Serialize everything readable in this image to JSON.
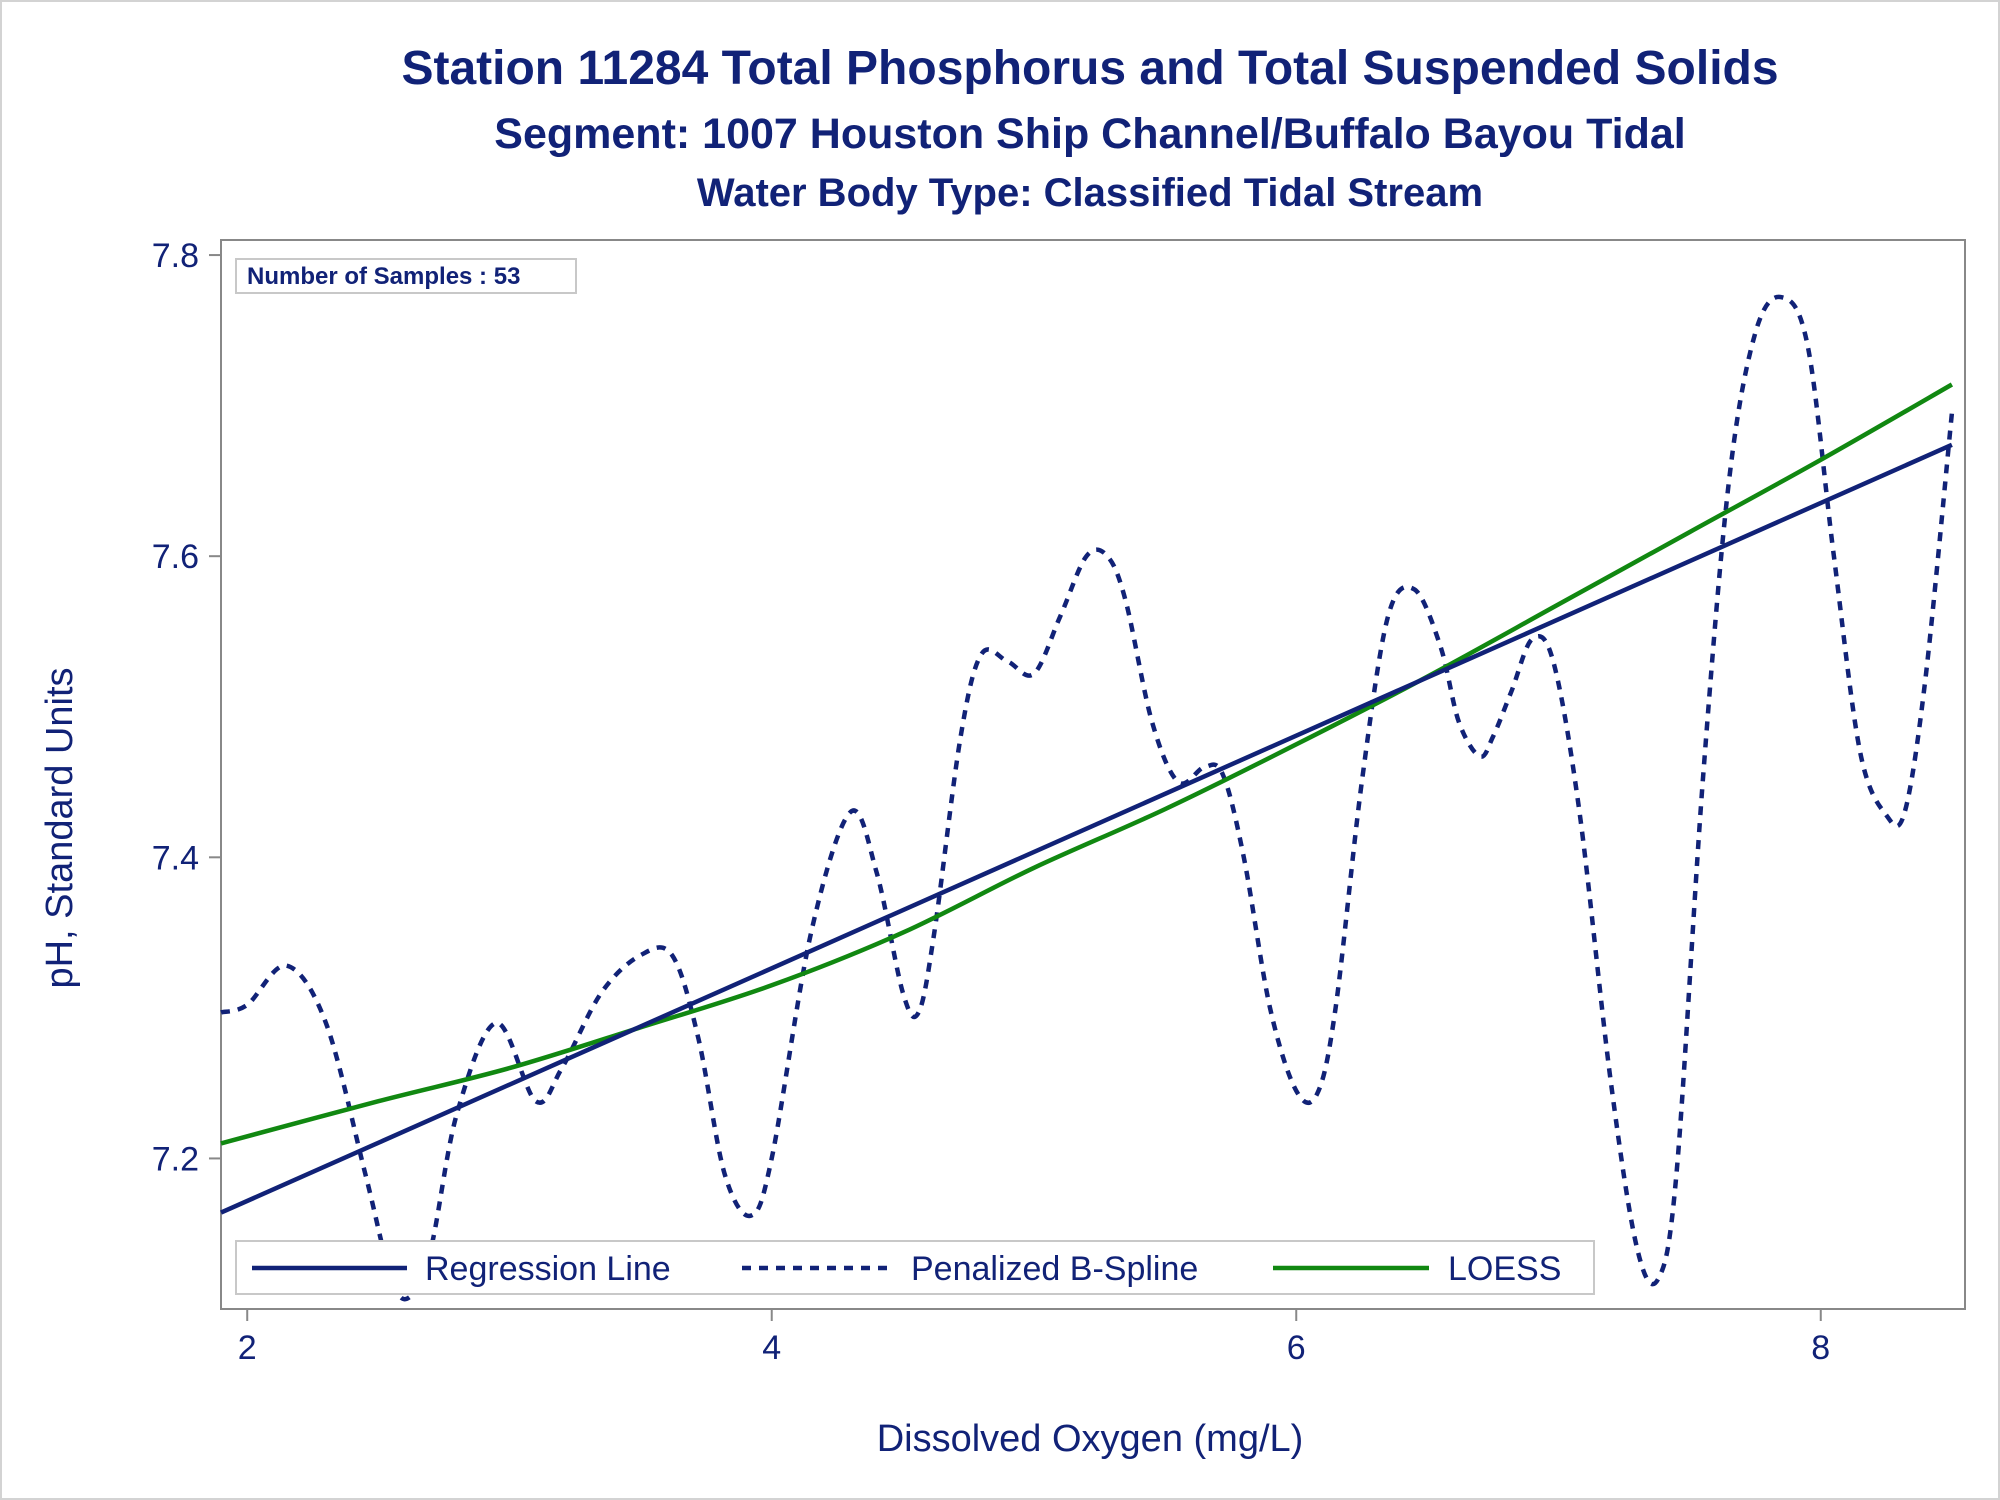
{
  "chart_data": {
    "type": "line",
    "title": "Station 11284  Total Phosphorus and Total Suspended Solids",
    "subtitle": "Segment: 1007  Houston Ship Channel/Buffalo Bayou Tidal",
    "subtitle2": "Water Body Type: Classified Tidal Stream",
    "xlabel": "Dissolved Oxygen (mg/L)",
    "ylabel": "pH, Standard Units",
    "xlim": [
      1.9,
      8.55
    ],
    "ylim": [
      7.1,
      7.81
    ],
    "x_ticks": [
      2,
      4,
      6,
      8
    ],
    "x_tick_labels": [
      "2",
      "4",
      "6",
      "8"
    ],
    "y_ticks": [
      7.2,
      7.4,
      7.6,
      7.8
    ],
    "y_tick_labels": [
      "7.2",
      "7.4",
      "7.6",
      "7.8"
    ],
    "grid": false,
    "legend_position": "bottom-inside",
    "inset_label": "Number of Samples : 53",
    "colors": {
      "navy": "#112277",
      "green": "#118811",
      "axis": "#888888",
      "frame": "#d3d3d3"
    },
    "series": [
      {
        "name": "Regression Line",
        "style": "solid",
        "color": "#112277",
        "x": [
          1.9,
          8.5
        ],
        "y": [
          7.164,
          7.674
        ]
      },
      {
        "name": "Penalized B-Spline",
        "style": "dashed",
        "color": "#112277",
        "x": [
          1.9,
          2.0,
          2.15,
          2.3,
          2.45,
          2.55,
          2.62,
          2.7,
          2.8,
          2.95,
          3.1,
          3.2,
          3.35,
          3.5,
          3.62,
          3.72,
          3.82,
          3.92,
          4.0,
          4.15,
          4.3,
          4.4,
          4.5,
          4.56,
          4.62,
          4.72,
          4.8,
          4.9,
          5.0,
          5.1,
          5.2,
          5.28,
          5.35,
          5.45,
          5.55,
          5.65,
          5.72,
          5.8,
          5.9,
          6.0,
          6.08,
          6.15,
          6.25,
          6.35,
          6.45,
          6.55,
          6.62,
          6.7,
          6.75,
          6.82,
          6.9,
          6.98,
          7.08,
          7.2,
          7.3,
          7.38,
          7.45,
          7.55,
          7.65,
          7.75,
          7.85,
          7.95,
          8.05,
          8.15,
          8.25,
          8.32,
          8.4,
          8.5
        ],
        "y": [
          7.297,
          7.302,
          7.328,
          7.29,
          7.19,
          7.12,
          7.108,
          7.14,
          7.23,
          7.29,
          7.238,
          7.26,
          7.31,
          7.335,
          7.335,
          7.28,
          7.19,
          7.162,
          7.2,
          7.35,
          7.43,
          7.39,
          7.31,
          7.297,
          7.35,
          7.48,
          7.535,
          7.53,
          7.522,
          7.56,
          7.6,
          7.6,
          7.57,
          7.49,
          7.45,
          7.46,
          7.455,
          7.4,
          7.3,
          7.245,
          7.243,
          7.3,
          7.45,
          7.56,
          7.578,
          7.54,
          7.49,
          7.467,
          7.48,
          7.51,
          7.545,
          7.53,
          7.43,
          7.25,
          7.14,
          7.12,
          7.19,
          7.45,
          7.65,
          7.748,
          7.772,
          7.74,
          7.6,
          7.47,
          7.428,
          7.43,
          7.52,
          7.695
        ]
      },
      {
        "name": "LOESS",
        "style": "solid",
        "color": "#118811",
        "x": [
          1.9,
          2.5,
          3.0,
          3.5,
          4.0,
          4.5,
          5.0,
          5.5,
          6.0,
          6.5,
          7.0,
          7.5,
          8.0,
          8.5
        ],
        "y": [
          7.21,
          7.238,
          7.26,
          7.287,
          7.315,
          7.35,
          7.393,
          7.432,
          7.475,
          7.52,
          7.568,
          7.616,
          7.664,
          7.714
        ]
      }
    ]
  }
}
